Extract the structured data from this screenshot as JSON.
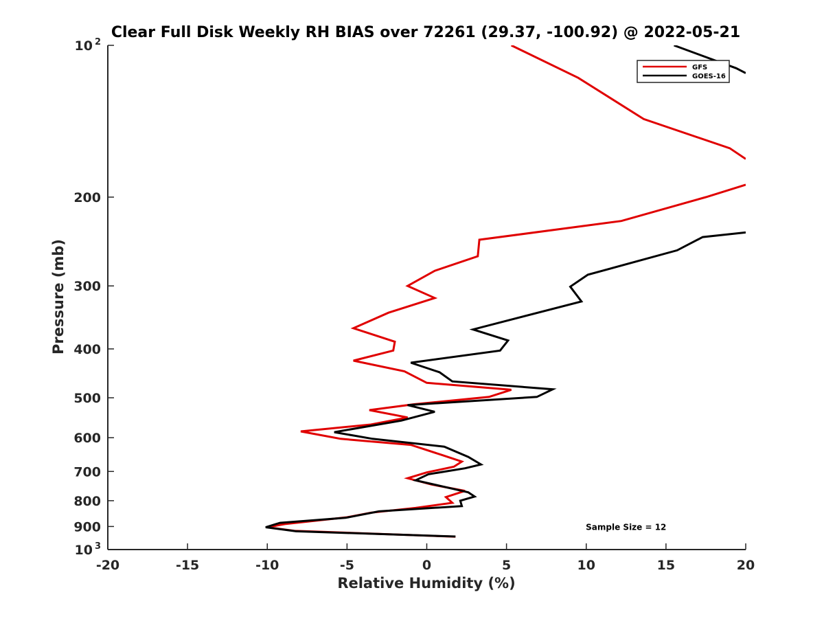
{
  "chart_data": {
    "type": "line",
    "title": "Clear Full Disk Weekly RH BIAS over 72261 (29.37, -100.92) @ 2022-05-21",
    "xlabel": "Relative Humidity (%)",
    "ylabel": "Pressure (mb)",
    "xlim": [
      -20,
      20
    ],
    "ylim": [
      100,
      1000
    ],
    "y_scale": "log",
    "y_reversed": true,
    "grid": false,
    "legend_position": "top-right",
    "x_ticks": [
      {
        "value": -20,
        "label": "-20"
      },
      {
        "value": -15,
        "label": "-15"
      },
      {
        "value": -10,
        "label": "-10"
      },
      {
        "value": -5,
        "label": "-5"
      },
      {
        "value": 0,
        "label": "0"
      },
      {
        "value": 5,
        "label": "5"
      },
      {
        "value": 10,
        "label": "10"
      },
      {
        "value": 15,
        "label": "15"
      },
      {
        "value": 20,
        "label": "20"
      }
    ],
    "y_ticks": [
      {
        "value": 100,
        "label": "10",
        "sup": "2"
      },
      {
        "value": 200,
        "label": "200"
      },
      {
        "value": 300,
        "label": "300"
      },
      {
        "value": 400,
        "label": "400"
      },
      {
        "value": 500,
        "label": "500"
      },
      {
        "value": 600,
        "label": "600"
      },
      {
        "value": 700,
        "label": "700"
      },
      {
        "value": 800,
        "label": "800"
      },
      {
        "value": 900,
        "label": "900"
      },
      {
        "value": 1000,
        "label": "10",
        "sup": "3"
      }
    ],
    "series": [
      {
        "name": "GFS",
        "color": "#e00000",
        "points": [
          [
            5.3,
            100
          ],
          [
            9.5,
            116
          ],
          [
            13.6,
            140
          ],
          [
            19,
            160
          ],
          [
            20,
            168
          ],
          [
            null,
            null
          ],
          [
            20,
            189
          ],
          [
            17.5,
            200
          ],
          [
            12.2,
            223
          ],
          [
            3.3,
            243
          ],
          [
            3.2,
            262
          ],
          [
            0.5,
            280
          ],
          [
            -1.2,
            300
          ],
          [
            0.5,
            317
          ],
          [
            -2.4,
            339
          ],
          [
            -4.6,
            364
          ],
          [
            -2,
            387
          ],
          [
            -2.1,
            403
          ],
          [
            -4.6,
            422
          ],
          [
            -1.4,
            443
          ],
          [
            0,
            467
          ],
          [
            5.3,
            482
          ],
          [
            3.9,
            498
          ],
          [
            -0.8,
            515
          ],
          [
            -3.6,
            529
          ],
          [
            -1.2,
            547
          ],
          [
            -3.5,
            565
          ],
          [
            -7.9,
            583
          ],
          [
            -5.4,
            603
          ],
          [
            -1,
            620
          ],
          [
            1,
            650
          ],
          [
            2.2,
            669
          ],
          [
            1.7,
            685
          ],
          [
            0,
            703
          ],
          [
            -1.2,
            722
          ],
          [
            0.3,
            743
          ],
          [
            2.4,
            765
          ],
          [
            1.2,
            787
          ],
          [
            1.6,
            808
          ],
          [
            -0.7,
            827
          ],
          [
            -3.5,
            845
          ],
          [
            -5,
            863
          ],
          [
            -8.9,
            890
          ],
          [
            -10,
            903
          ],
          [
            -8.3,
            918
          ],
          [
            1.8,
            943
          ]
        ]
      },
      {
        "name": "GOES-16",
        "color": "#000000",
        "points": [
          [
            15.5,
            100
          ],
          [
            19.4,
            111
          ],
          [
            20,
            113.5
          ],
          [
            null,
            null
          ],
          [
            20,
            235
          ],
          [
            17.3,
            240
          ],
          [
            15.7,
            255
          ],
          [
            10.1,
            285
          ],
          [
            9,
            301
          ],
          [
            9.7,
            322
          ],
          [
            2.9,
            366
          ],
          [
            5.1,
            385
          ],
          [
            4.6,
            403
          ],
          [
            -1,
            426
          ],
          [
            0.8,
            445
          ],
          [
            1.6,
            464
          ],
          [
            7.9,
            481
          ],
          [
            6.9,
            498
          ],
          [
            -1.2,
            517
          ],
          [
            0.5,
            533
          ],
          [
            -1.6,
            555
          ],
          [
            -5.8,
            585
          ],
          [
            -3.4,
            603
          ],
          [
            1.1,
            625
          ],
          [
            2.6,
            655
          ],
          [
            3.4,
            678
          ],
          [
            2.4,
            690
          ],
          [
            0.1,
            709
          ],
          [
            -0.7,
            729
          ],
          [
            1.1,
            751
          ],
          [
            2.6,
            770
          ],
          [
            3,
            785
          ],
          [
            2.1,
            800
          ],
          [
            2.2,
            820
          ],
          [
            -3,
            840
          ],
          [
            -5.1,
            865
          ],
          [
            -9.2,
            885
          ],
          [
            -10.1,
            903
          ],
          [
            -8.2,
            920
          ],
          [
            1.8,
            942
          ]
        ]
      }
    ],
    "annotations": [
      {
        "text": "Sample Size = 12",
        "x": 12.5,
        "y": 900
      }
    ]
  }
}
